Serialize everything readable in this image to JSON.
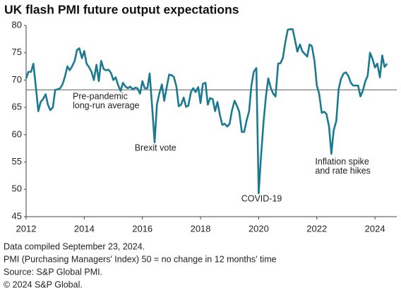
{
  "chart_data": {
    "type": "line",
    "title": "UK flash PMI future output expectations",
    "x": [
      2012,
      2012.08,
      2012.17,
      2012.25,
      2012.33,
      2012.42,
      2012.5,
      2012.58,
      2012.67,
      2012.75,
      2012.83,
      2012.92,
      2013,
      2013.08,
      2013.17,
      2013.25,
      2013.33,
      2013.42,
      2013.5,
      2013.58,
      2013.67,
      2013.75,
      2013.83,
      2013.92,
      2014,
      2014.08,
      2014.17,
      2014.25,
      2014.33,
      2014.42,
      2014.5,
      2014.58,
      2014.67,
      2014.75,
      2014.83,
      2014.92,
      2015,
      2015.08,
      2015.17,
      2015.25,
      2015.33,
      2015.42,
      2015.5,
      2015.58,
      2015.67,
      2015.75,
      2015.83,
      2015.92,
      2016,
      2016.08,
      2016.17,
      2016.25,
      2016.33,
      2016.42,
      2016.5,
      2016.58,
      2016.67,
      2016.75,
      2016.83,
      2016.92,
      2017,
      2017.08,
      2017.17,
      2017.25,
      2017.33,
      2017.42,
      2017.5,
      2017.58,
      2017.67,
      2017.75,
      2017.83,
      2017.92,
      2018,
      2018.08,
      2018.17,
      2018.25,
      2018.33,
      2018.42,
      2018.5,
      2018.58,
      2018.67,
      2018.75,
      2018.83,
      2018.92,
      2019,
      2019.08,
      2019.17,
      2019.25,
      2019.33,
      2019.42,
      2019.5,
      2019.58,
      2019.67,
      2019.75,
      2019.83,
      2019.92,
      2020,
      2020.08,
      2020.17,
      2020.25,
      2020.33,
      2020.42,
      2020.5,
      2020.58,
      2020.67,
      2020.75,
      2020.83,
      2020.92,
      2021,
      2021.08,
      2021.17,
      2021.25,
      2021.33,
      2021.42,
      2021.5,
      2021.58,
      2021.67,
      2021.75,
      2021.83,
      2021.92,
      2022,
      2022.08,
      2022.17,
      2022.25,
      2022.33,
      2022.42,
      2022.5,
      2022.58,
      2022.67,
      2022.75,
      2022.83,
      2022.92,
      2023,
      2023.08,
      2023.17,
      2023.25,
      2023.33,
      2023.42,
      2023.5,
      2023.58,
      2023.67,
      2023.75,
      2023.83,
      2023.92,
      2024,
      2024.08,
      2024.17,
      2024.25,
      2024.33,
      2024.42
    ],
    "values": [
      70.3,
      71.5,
      71.5,
      73,
      69,
      64.3,
      66,
      66.5,
      67.4,
      65.5,
      64.5,
      65,
      68.2,
      68.3,
      68.5,
      69.2,
      70.5,
      72.5,
      71.8,
      72.5,
      73.5,
      75.5,
      75.8,
      74,
      75.3,
      73,
      72.3,
      71.5,
      70,
      72.8,
      69.8,
      73.5,
      72,
      71.8,
      71.9,
      71.3,
      70,
      70.5,
      69,
      68,
      69.5,
      68.8,
      68.5,
      68.8,
      68.3,
      68.6,
      68.5,
      67.5,
      69.8,
      68.5,
      68.5,
      71.2,
      65.5,
      58.6,
      65.5,
      67.5,
      69.2,
      66.2,
      68.5,
      71,
      70.9,
      70.6,
      68.8,
      65.2,
      65.5,
      66.8,
      65.1,
      65.3,
      67.8,
      68.5,
      67.8,
      68.7,
      65.8,
      69.3,
      69.5,
      65.5,
      66.7,
      66.5,
      64.3,
      66,
      63.5,
      61.8,
      62,
      61.5,
      62,
      64.4,
      66.2,
      65.3,
      64.2,
      60.5,
      60.5,
      62.5,
      64.3,
      69,
      71.5,
      72.2,
      49.3,
      56,
      62.5,
      67,
      70.3,
      68.5,
      67.5,
      67,
      73,
      73.1,
      74,
      77,
      79.2,
      79.3,
      79.3,
      77.3,
      75.2,
      76.5,
      75.3,
      74.8,
      74.3,
      76.5,
      76.2,
      73.5,
      69,
      67.5,
      64,
      64.2,
      63.8,
      61.5,
      56.5,
      60.8,
      62.5,
      68.3,
      70.2,
      71.2,
      71.4,
      70.8,
      69.5,
      69,
      69,
      69,
      67,
      68,
      69.8,
      70.8,
      75,
      73.8,
      72.3,
      73,
      70.5,
      74.5,
      72.4,
      73
    ],
    "color": "#1b7a8f",
    "xlim": [
      2012,
      2024.75
    ],
    "xticks": [
      2012,
      2014,
      2016,
      2018,
      2020,
      2022,
      2024
    ],
    "ylim": [
      45,
      80
    ],
    "yticks": [
      45,
      50,
      55,
      60,
      65,
      70,
      75,
      80
    ],
    "reference_line": {
      "value": 68.2,
      "color": "#808080",
      "label": [
        "Pre-pandemic",
        "long-run average"
      ]
    },
    "annotations": [
      {
        "x": 2016.45,
        "y": 57.5,
        "lines": [
          "Brexit vote"
        ]
      },
      {
        "x": 2020.1,
        "y": 48.2,
        "lines": [
          "COVID-19"
        ]
      },
      {
        "x": 2022.55,
        "y": 55,
        "lines": [
          "Inflation spike",
          "and rate hikes"
        ]
      }
    ],
    "notes": [
      "Data compiled September 23, 2024.",
      "PMI (Purchasing Managers' Index) 50 = no change in 12 months' time",
      "Source: S&P Global PMI.",
      "© 2024 S&P Global."
    ]
  }
}
